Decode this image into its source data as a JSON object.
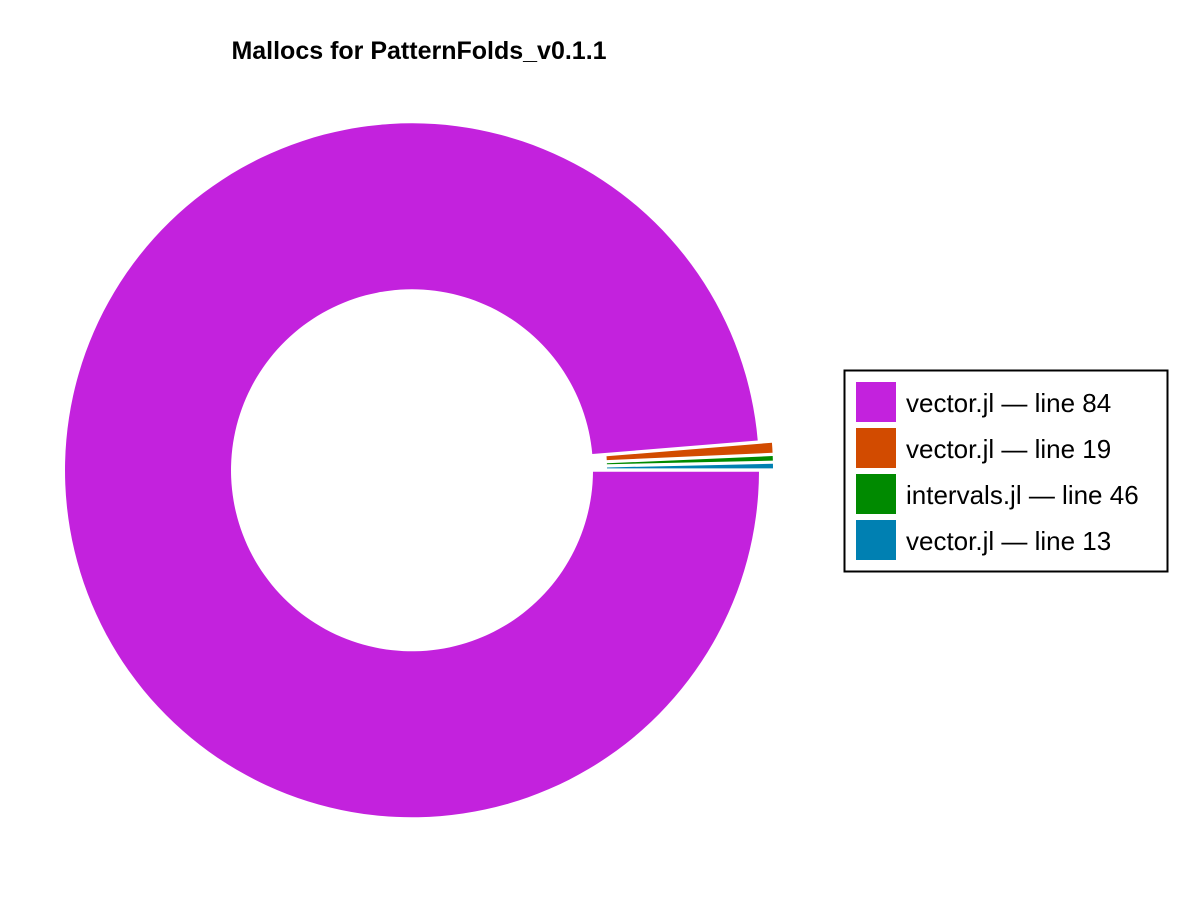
{
  "chart_data": {
    "type": "pie",
    "style": "donut",
    "title": "Mallocs for PatternFolds_v0.1.1",
    "slices": [
      {
        "label": "vector.jl — line 84",
        "value": 98.7,
        "color": "#c322dd"
      },
      {
        "label": "vector.jl — line 19",
        "value": 0.6,
        "color": "#d24b00"
      },
      {
        "label": "intervals.jl — line 46",
        "value": 0.35,
        "color": "#008a00"
      },
      {
        "label": "vector.jl — line 13",
        "value": 0.35,
        "color": "#0080b2"
      }
    ],
    "legend_position": "right",
    "start_direction": "3 o'clock",
    "slice_order": "clockwise from largest",
    "slice_separation": "white gaps, all slices exploded outward"
  }
}
